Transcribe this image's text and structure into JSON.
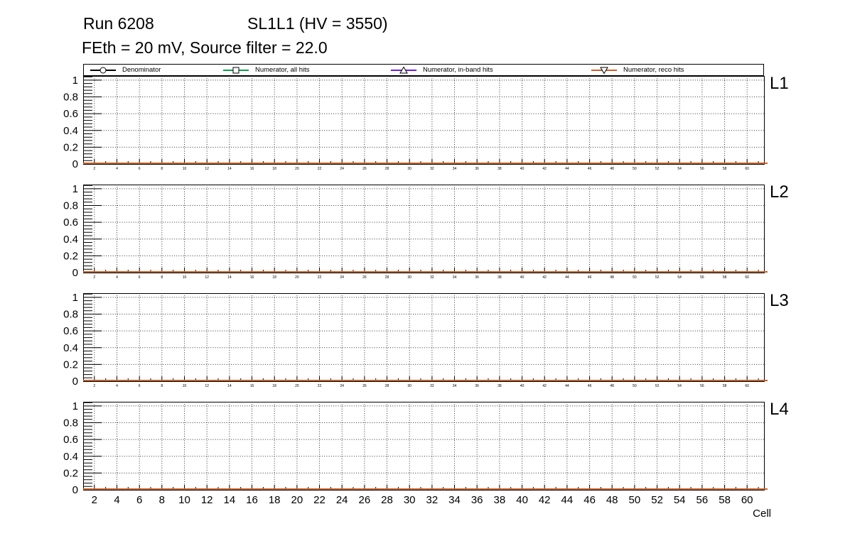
{
  "header": {
    "run_label": "Run 6208",
    "chamber_label": "SL1L1 (HV = 3550)",
    "conditions_label": "FEth = 20 mV, Source filter = 22.0"
  },
  "chart_data": {
    "type": "line",
    "title": "Run 6208   SL1L1 (HV = 3550)",
    "subtitle": "FEth = 20 mV, Source filter = 22.0",
    "xlabel": "Cell",
    "x_range": [
      1,
      61.5
    ],
    "x_ticks": [
      2,
      4,
      6,
      8,
      10,
      12,
      14,
      16,
      18,
      20,
      22,
      24,
      26,
      28,
      30,
      32,
      34,
      36,
      38,
      40,
      42,
      44,
      46,
      48,
      50,
      52,
      54,
      56,
      58,
      60
    ],
    "ylim": [
      0,
      1.05
    ],
    "y_ticks": [
      0,
      0.2,
      0.4,
      0.6,
      0.8,
      1
    ],
    "grid": "dotted",
    "legend_position": "top",
    "series": [
      {
        "name": "Denominator",
        "color": "#000000",
        "marker": "open-circle",
        "constant_y": 0
      },
      {
        "name": "Numerator, all hits",
        "color": "#0f9d4a",
        "marker": "open-square",
        "constant_y": 0
      },
      {
        "name": "Numerator, in-band hits",
        "color": "#7120cc",
        "marker": "open-triangle-up",
        "constant_y": 0
      },
      {
        "name": "Numerator, reco hits",
        "color": "#c8622d",
        "marker": "open-triangle-down",
        "constant_y": 0
      }
    ],
    "panels": [
      {
        "label": "L1"
      },
      {
        "label": "L2"
      },
      {
        "label": "L3"
      },
      {
        "label": "L4"
      }
    ]
  }
}
